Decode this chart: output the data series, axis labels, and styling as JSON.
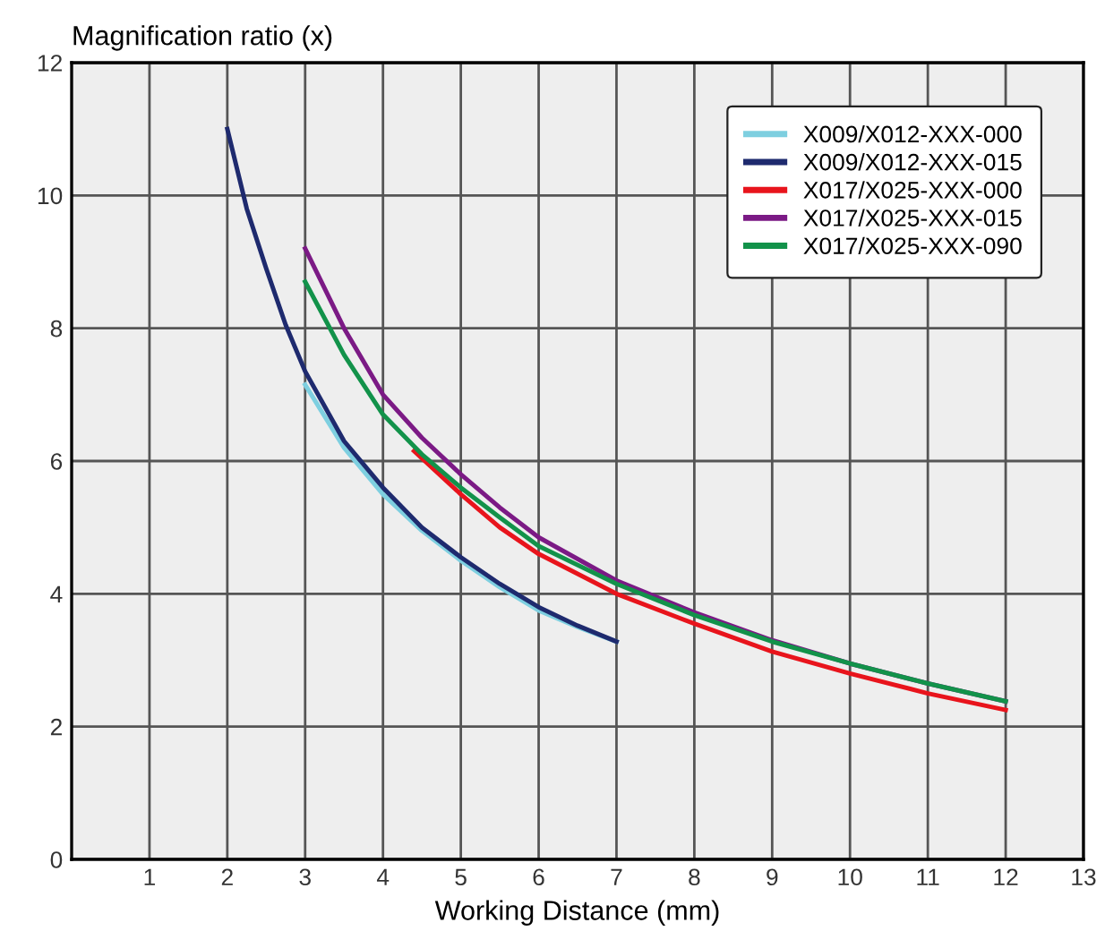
{
  "chart_data": {
    "type": "line",
    "xlabel": "Working Distance (mm)",
    "ylabel": "Magnification ratio (x)",
    "xlim": [
      0,
      13
    ],
    "xticks": [
      1,
      2,
      3,
      4,
      5,
      6,
      7,
      8,
      9,
      10,
      11,
      12,
      13
    ],
    "ylim": [
      0,
      12
    ],
    "yticks": [
      0,
      2,
      4,
      6,
      8,
      10,
      12
    ],
    "grid": true,
    "legend": "top right",
    "marker": "none",
    "line_style": "solid",
    "series": [
      {
        "name": "X009/X012-XXX-000",
        "color": "#7ecfe0",
        "x": [
          3,
          3.5,
          4,
          4.5,
          5,
          5.5,
          6,
          6.5,
          7
        ],
        "values": [
          7.15,
          6.2,
          5.5,
          4.95,
          4.5,
          4.1,
          3.75,
          3.5,
          3.28
        ]
      },
      {
        "name": "X009/X012-XXX-015",
        "color": "#1e2a6e",
        "x": [
          2,
          2.25,
          2.5,
          2.75,
          3,
          3.5,
          4,
          4.5,
          5,
          5.5,
          6,
          6.5,
          7
        ],
        "values": [
          11,
          9.8,
          8.9,
          8.05,
          7.35,
          6.3,
          5.6,
          5.0,
          4.55,
          4.15,
          3.8,
          3.52,
          3.28
        ]
      },
      {
        "name": "X017/X025-XXX-000",
        "color": "#e8141c",
        "x": [
          4.4,
          5,
          5.5,
          6,
          7,
          8,
          9,
          10,
          11,
          12
        ],
        "values": [
          6.15,
          5.5,
          5.0,
          4.6,
          4.0,
          3.55,
          3.13,
          2.8,
          2.5,
          2.25
        ]
      },
      {
        "name": "X017/X025-XXX-015",
        "color": "#7b1a85",
        "x": [
          3,
          3.5,
          4,
          4.5,
          5,
          5.5,
          6,
          7,
          8,
          9,
          10,
          11,
          12
        ],
        "values": [
          9.2,
          8.0,
          7.0,
          6.35,
          5.8,
          5.3,
          4.85,
          4.2,
          3.72,
          3.3,
          2.95,
          2.65,
          2.38
        ]
      },
      {
        "name": "X017/X025-XXX-090",
        "color": "#12924a",
        "x": [
          3,
          3.5,
          4,
          4.5,
          5,
          5.5,
          6,
          7,
          8,
          9,
          10,
          11,
          12
        ],
        "values": [
          8.7,
          7.6,
          6.7,
          6.1,
          5.6,
          5.15,
          4.72,
          4.15,
          3.68,
          3.28,
          2.95,
          2.65,
          2.38
        ]
      }
    ]
  }
}
